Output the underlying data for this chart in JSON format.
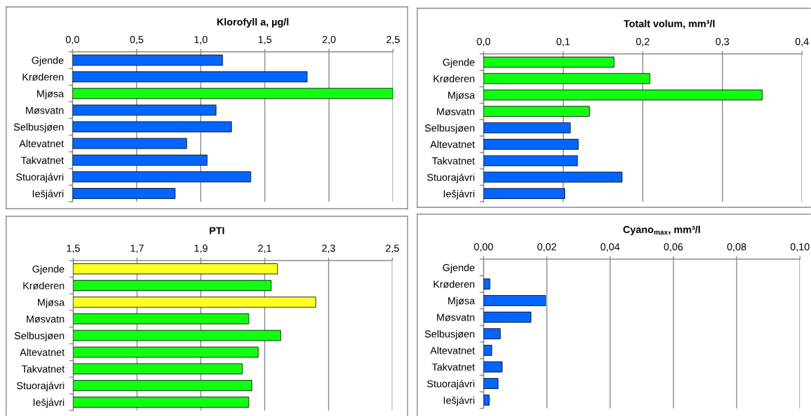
{
  "chart_data": [
    {
      "type": "bar",
      "orientation": "horizontal",
      "title": "Klorofyll a, µg/l",
      "categories": [
        "Gjende",
        "Krøderen",
        "Mjøsa",
        "Møsvatn",
        "Selbusjøen",
        "Altevatnet",
        "Takvatnet",
        "Stuorajávri",
        "Iešjávri"
      ],
      "values": [
        1.17,
        1.83,
        2.5,
        1.12,
        1.24,
        0.89,
        1.05,
        1.39,
        0.8
      ],
      "colors": [
        "#0066ff",
        "#0066ff",
        "#11ff11",
        "#0066ff",
        "#0066ff",
        "#0066ff",
        "#0066ff",
        "#0066ff",
        "#0066ff"
      ],
      "xlim": [
        0,
        2.5
      ],
      "xticks": [
        {
          "value": 0,
          "label": "0,0"
        },
        {
          "value": 0.5,
          "label": "0,5"
        },
        {
          "value": 1.0,
          "label": "1,0"
        },
        {
          "value": 1.5,
          "label": "1,5"
        },
        {
          "value": 2.0,
          "label": "2,0"
        },
        {
          "value": 2.5,
          "label": "2,5"
        }
      ],
      "grid": "x"
    },
    {
      "type": "bar",
      "orientation": "horizontal",
      "title": "Totalt volum, mm³/l",
      "categories": [
        "Gjende",
        "Krøderen",
        "Mjøsa",
        "Møsvatn",
        "Selbusjøen",
        "Altevatnet",
        "Takvatnet",
        "Stuorajávri",
        "Iešjávri"
      ],
      "values": [
        0.164,
        0.209,
        0.35,
        0.133,
        0.109,
        0.119,
        0.118,
        0.174,
        0.102
      ],
      "colors": [
        "#11ff11",
        "#11ff11",
        "#11ff11",
        "#11ff11",
        "#0066ff",
        "#0066ff",
        "#0066ff",
        "#0066ff",
        "#0066ff"
      ],
      "xlim": [
        0,
        0.4
      ],
      "xticks": [
        {
          "value": 0,
          "label": "0,0"
        },
        {
          "value": 0.1,
          "label": "0,1"
        },
        {
          "value": 0.2,
          "label": "0,2"
        },
        {
          "value": 0.3,
          "label": "0,3"
        },
        {
          "value": 0.4,
          "label": "0,4"
        }
      ],
      "grid": "x"
    },
    {
      "type": "bar",
      "orientation": "horizontal",
      "title": "PTI",
      "categories": [
        "Gjende",
        "Krøderen",
        "Mjøsa",
        "Møsvatn",
        "Selbusjøen",
        "Altevatnet",
        "Takvatnet",
        "Stuorajávri",
        "Iešjávri"
      ],
      "values": [
        2.14,
        2.12,
        2.26,
        2.05,
        2.15,
        2.08,
        2.03,
        2.06,
        2.05
      ],
      "colors": [
        "#ffff22",
        "#11ff11",
        "#ffff22",
        "#11ff11",
        "#11ff11",
        "#11ff11",
        "#11ff11",
        "#11ff11",
        "#11ff11"
      ],
      "xlim": [
        1.5,
        2.5
      ],
      "xticks": [
        {
          "value": 1.5,
          "label": "1,5"
        },
        {
          "value": 1.7,
          "label": "1,7"
        },
        {
          "value": 1.9,
          "label": "1,9"
        },
        {
          "value": 2.1,
          "label": "2,1"
        },
        {
          "value": 2.3,
          "label": "2,3"
        },
        {
          "value": 2.5,
          "label": "2,5"
        }
      ],
      "grid": "x"
    },
    {
      "type": "bar",
      "orientation": "horizontal",
      "title": "Cyano$_{max}$, mm³/l",
      "categories": [
        "Gjende",
        "Krøderen",
        "Mjøsa",
        "Møsvatn",
        "Selbusjøen",
        "Altevatnet",
        "Takvatnet",
        "Stuorajávri",
        "Iešjávri"
      ],
      "values": [
        null,
        0.002,
        0.0196,
        0.015,
        0.0053,
        0.0026,
        0.0059,
        0.0046,
        0.0018
      ],
      "colors": [
        "#0066ff",
        "#0066ff",
        "#0066ff",
        "#0066ff",
        "#0066ff",
        "#0066ff",
        "#0066ff",
        "#0066ff",
        "#0066ff"
      ],
      "xlim": [
        0,
        0.1
      ],
      "xticks": [
        {
          "value": 0,
          "label": "0,00"
        },
        {
          "value": 0.02,
          "label": "0,02"
        },
        {
          "value": 0.04,
          "label": "0,04"
        },
        {
          "value": 0.06,
          "label": "0,06"
        },
        {
          "value": 0.08,
          "label": "0,08"
        },
        {
          "value": 0.1,
          "label": "0,10"
        }
      ],
      "grid": "x"
    }
  ]
}
